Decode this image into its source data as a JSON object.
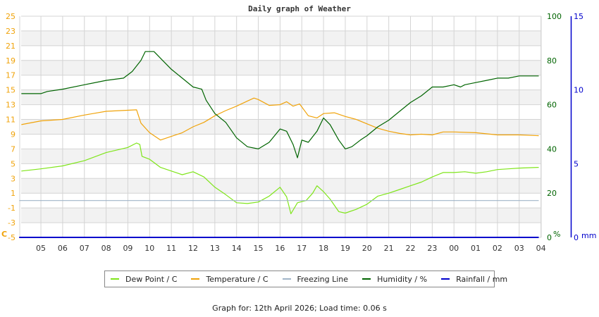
{
  "page": {
    "title": "Daily graph of Weather",
    "footer": "Graph for: 12th April 2026; Load time: 0.06 s"
  },
  "colors": {
    "dew_point": "#7fe51a",
    "temperature": "#f0a30a",
    "freezing_line": "#a0b4c8",
    "humidity": "#006400",
    "rainfall": "#0000cc",
    "band": "#f2f2f2",
    "grid": "#d4d4d4"
  },
  "legend": [
    {
      "key": "dew_point",
      "label": "Dew Point / C"
    },
    {
      "key": "temperature",
      "label": "Temperature / C"
    },
    {
      "key": "freezing_line",
      "label": "Freezing Line"
    },
    {
      "key": "humidity",
      "label": "Humidity / %"
    },
    {
      "key": "rainfall",
      "label": "Rainfall / mm"
    }
  ],
  "chart_data": {
    "type": "line",
    "title": "Daily graph of Weather",
    "xlabel": "",
    "x_tick_labels": [
      "05",
      "06",
      "07",
      "08",
      "09",
      "10",
      "11",
      "12",
      "13",
      "14",
      "15",
      "16",
      "17",
      "18",
      "19",
      "20",
      "21",
      "22",
      "23",
      "00",
      "01",
      "02",
      "03",
      "04"
    ],
    "axes": {
      "left": {
        "label": "C",
        "ylim": [
          -5,
          25
        ],
        "ticks": [
          25,
          23,
          21,
          19,
          17,
          15,
          13,
          11,
          9,
          7,
          5,
          3,
          1,
          -1,
          -3,
          -5
        ]
      },
      "right_humidity": {
        "label": "%",
        "ylim": [
          0,
          100
        ],
        "ticks": [
          100,
          80,
          60,
          40,
          20,
          0
        ]
      },
      "right_rainfall": {
        "label": "mm",
        "ylim": [
          0,
          15
        ],
        "ticks": [
          15,
          10,
          5,
          0
        ]
      }
    },
    "grid": true,
    "legend_position": "bottom",
    "x_unit": "hours since 04:00",
    "series": [
      {
        "name": "Dew Point / C",
        "axis": "left",
        "points": [
          [
            0.1,
            4.0
          ],
          [
            1,
            4.3
          ],
          [
            2,
            4.7
          ],
          [
            3,
            5.4
          ],
          [
            4,
            6.5
          ],
          [
            5,
            7.2
          ],
          [
            5.4,
            7.8
          ],
          [
            5.55,
            7.6
          ],
          [
            5.65,
            6.0
          ],
          [
            6,
            5.6
          ],
          [
            6.5,
            4.5
          ],
          [
            7,
            4.0
          ],
          [
            7.5,
            3.5
          ],
          [
            8,
            3.9
          ],
          [
            8.5,
            3.2
          ],
          [
            9,
            1.8
          ],
          [
            9.5,
            0.8
          ],
          [
            10,
            -0.3
          ],
          [
            10.5,
            -0.4
          ],
          [
            11,
            -0.2
          ],
          [
            11.5,
            0.6
          ],
          [
            12,
            1.8
          ],
          [
            12.3,
            0.5
          ],
          [
            12.5,
            -1.8
          ],
          [
            12.8,
            -0.3
          ],
          [
            13.2,
            0.0
          ],
          [
            13.5,
            1.0
          ],
          [
            13.7,
            2.0
          ],
          [
            14,
            1.2
          ],
          [
            14.3,
            0.2
          ],
          [
            14.7,
            -1.5
          ],
          [
            15,
            -1.7
          ],
          [
            15.5,
            -1.2
          ],
          [
            16,
            -0.5
          ],
          [
            16.5,
            0.6
          ],
          [
            17,
            1.0
          ],
          [
            17.5,
            1.5
          ],
          [
            18,
            2.0
          ],
          [
            18.5,
            2.5
          ],
          [
            19,
            3.2
          ],
          [
            19.5,
            3.8
          ],
          [
            20,
            3.8
          ],
          [
            20.5,
            3.9
          ],
          [
            21,
            3.7
          ],
          [
            21.5,
            3.9
          ],
          [
            22,
            4.2
          ],
          [
            22.5,
            4.3
          ],
          [
            23,
            4.4
          ],
          [
            23.9,
            4.5
          ]
        ]
      },
      {
        "name": "Temperature / C",
        "axis": "left",
        "points": [
          [
            0.1,
            10.3
          ],
          [
            1,
            10.8
          ],
          [
            2,
            11.0
          ],
          [
            3,
            11.6
          ],
          [
            4,
            12.1
          ],
          [
            5.4,
            12.3
          ],
          [
            5.6,
            10.5
          ],
          [
            6,
            9.2
          ],
          [
            6.5,
            8.2
          ],
          [
            7,
            8.7
          ],
          [
            7.5,
            9.2
          ],
          [
            8,
            10.0
          ],
          [
            8.5,
            10.6
          ],
          [
            9,
            11.5
          ],
          [
            9.5,
            12.2
          ],
          [
            10,
            12.8
          ],
          [
            10.5,
            13.5
          ],
          [
            10.8,
            13.9
          ],
          [
            11,
            13.7
          ],
          [
            11.5,
            12.9
          ],
          [
            12,
            13.0
          ],
          [
            12.3,
            13.4
          ],
          [
            12.6,
            12.8
          ],
          [
            12.9,
            13.1
          ],
          [
            13.3,
            11.5
          ],
          [
            13.7,
            11.2
          ],
          [
            14,
            11.8
          ],
          [
            14.5,
            11.9
          ],
          [
            15,
            11.4
          ],
          [
            15.5,
            11.0
          ],
          [
            16,
            10.4
          ],
          [
            16.5,
            9.8
          ],
          [
            17,
            9.4
          ],
          [
            17.5,
            9.1
          ],
          [
            18,
            8.9
          ],
          [
            18.5,
            9.0
          ],
          [
            19,
            8.9
          ],
          [
            19.5,
            9.3
          ],
          [
            20,
            9.3
          ],
          [
            21,
            9.2
          ],
          [
            22,
            8.9
          ],
          [
            23,
            8.9
          ],
          [
            23.9,
            8.8
          ]
        ]
      },
      {
        "name": "Freezing Line",
        "axis": "left",
        "points": [
          [
            0,
            0
          ],
          [
            23.9,
            0
          ]
        ]
      },
      {
        "name": "Humidity / %",
        "axis": "right_humidity",
        "points": [
          [
            0.1,
            65
          ],
          [
            1,
            65
          ],
          [
            1.3,
            66
          ],
          [
            2,
            67
          ],
          [
            3,
            69
          ],
          [
            4,
            71
          ],
          [
            4.8,
            72
          ],
          [
            5.2,
            75
          ],
          [
            5.6,
            80
          ],
          [
            5.8,
            84
          ],
          [
            6.2,
            84
          ],
          [
            6.6,
            80
          ],
          [
            7,
            76
          ],
          [
            7.5,
            72
          ],
          [
            8,
            68
          ],
          [
            8.4,
            67
          ],
          [
            8.6,
            62
          ],
          [
            9,
            56
          ],
          [
            9.5,
            52
          ],
          [
            10,
            45
          ],
          [
            10.5,
            41
          ],
          [
            11,
            40
          ],
          [
            11.5,
            43
          ],
          [
            12,
            49
          ],
          [
            12.3,
            48
          ],
          [
            12.6,
            42
          ],
          [
            12.8,
            36
          ],
          [
            13,
            44
          ],
          [
            13.3,
            43
          ],
          [
            13.7,
            48
          ],
          [
            14,
            54
          ],
          [
            14.3,
            51
          ],
          [
            14.7,
            44
          ],
          [
            15,
            40
          ],
          [
            15.3,
            41
          ],
          [
            15.7,
            44
          ],
          [
            16,
            46
          ],
          [
            16.5,
            50
          ],
          [
            17,
            53
          ],
          [
            17.5,
            57
          ],
          [
            18,
            61
          ],
          [
            18.5,
            64
          ],
          [
            19,
            68
          ],
          [
            19.5,
            68
          ],
          [
            20,
            69
          ],
          [
            20.3,
            68
          ],
          [
            20.5,
            69
          ],
          [
            21,
            70
          ],
          [
            21.5,
            71
          ],
          [
            22,
            72
          ],
          [
            22.5,
            72
          ],
          [
            23,
            73
          ],
          [
            23.9,
            73
          ]
        ]
      },
      {
        "name": "Rainfall / mm",
        "axis": "right_rainfall",
        "points": [
          [
            0,
            0
          ],
          [
            23.9,
            0
          ]
        ]
      }
    ]
  }
}
